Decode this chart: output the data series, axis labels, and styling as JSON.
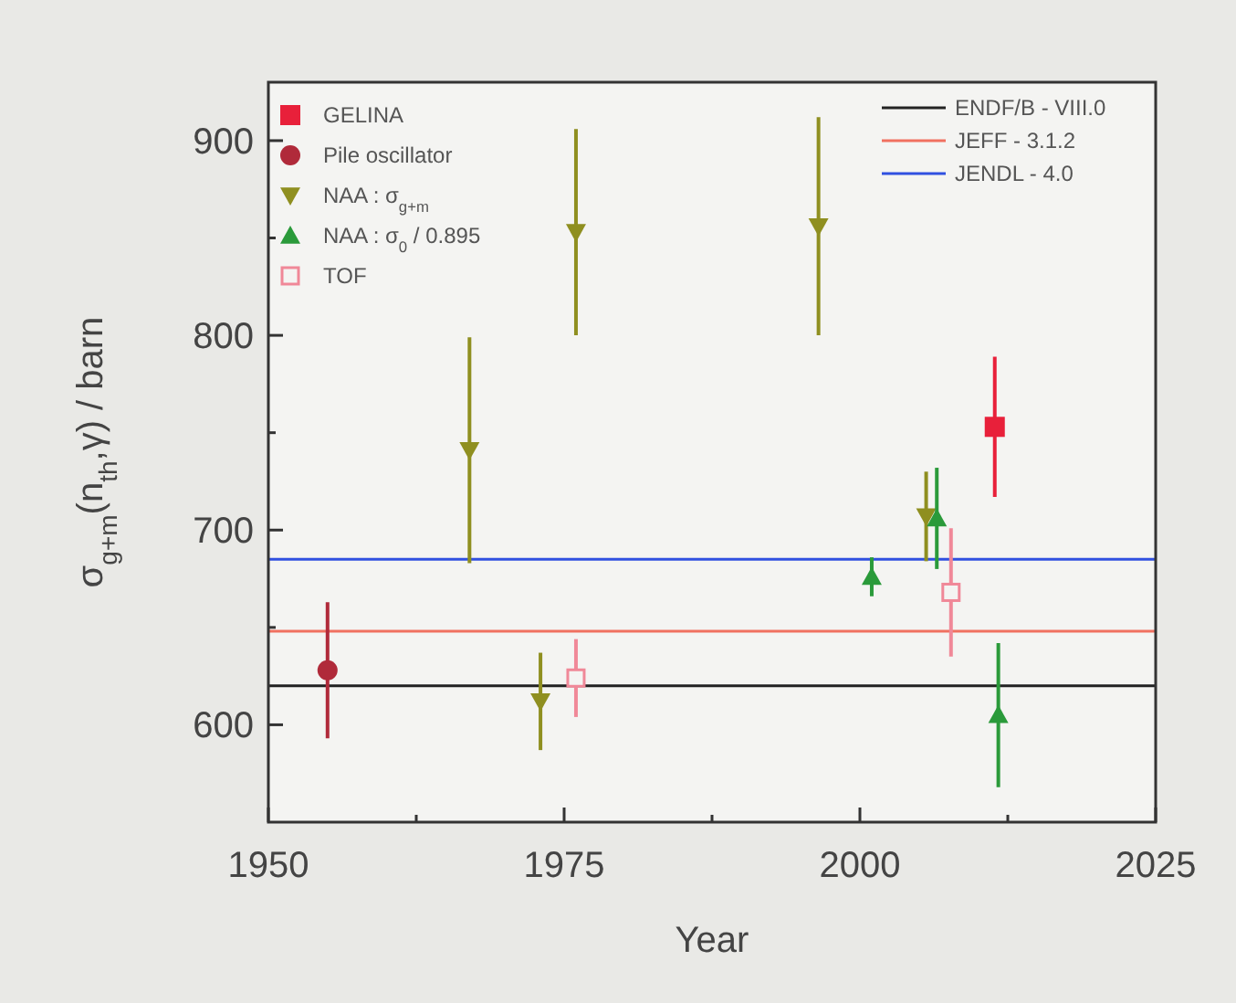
{
  "chart_data": {
    "type": "scatter",
    "xlabel": "Year",
    "ylabel": "σ$_{g+m}$(n$_{th}$,γ) / barn",
    "xlim": [
      1950,
      2025
    ],
    "xticks": [
      1950,
      {
        "value": 1962.5,
        "label": null
      },
      1975,
      {
        "value": 1987.5,
        "label": null
      },
      2000,
      {
        "value": 2012.5,
        "label": null
      },
      2025
    ],
    "ylim": [
      550,
      930
    ],
    "yticks": [
      600,
      {
        "value": 650,
        "label": null
      },
      700,
      {
        "value": 750,
        "label": null
      },
      800,
      {
        "value": 850,
        "label": null
      },
      900
    ],
    "grid": false,
    "legend": "top left",
    "series": [
      {
        "name": "GELINA",
        "color": "#e8203a",
        "marker": "square",
        "x": [
          2011.4
        ],
        "values": [
          753
        ],
        "errors": [
          36
        ]
      },
      {
        "name": "Pile oscillator",
        "color": "#b02a3a",
        "marker": "circle",
        "x": [
          1955
        ],
        "values": [
          628
        ],
        "errors": [
          35
        ]
      },
      {
        "name": "NAA : σ$_{g+m}$",
        "color": "#8f8f20",
        "marker": "triangle-down",
        "x": [
          1967,
          1973,
          1976,
          1996.5,
          2005.6
        ],
        "values": [
          741,
          612,
          853,
          856,
          707
        ],
        "errors": [
          58,
          25,
          53,
          56,
          23
        ]
      },
      {
        "name": "NAA : σ$_{0}$ / 0.895",
        "color": "#2a9a3a",
        "marker": "triangle",
        "x": [
          2001,
          2006.5,
          2011.7
        ],
        "values": [
          676,
          706,
          605
        ],
        "errors": [
          10,
          26,
          37
        ]
      },
      {
        "name": "TOF",
        "color": "#f08898",
        "marker": "square-open",
        "x": [
          1976,
          2007.7
        ],
        "values": [
          624,
          668
        ],
        "errors": [
          20,
          33
        ]
      }
    ],
    "ref_lines": [
      {
        "axis": "y",
        "value": 620,
        "label": "ENDF/B - VIII.0",
        "color": "#222222"
      },
      {
        "axis": "y",
        "value": 648,
        "label": "JEFF - 3.1.2",
        "color": "#f07060"
      },
      {
        "axis": "y",
        "value": 685,
        "label": "JENDL - 4.0",
        "color": "#3050e0"
      }
    ]
  }
}
